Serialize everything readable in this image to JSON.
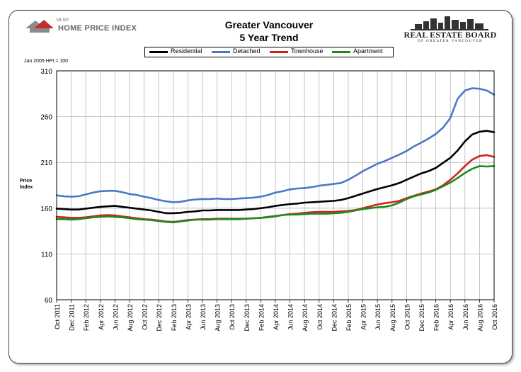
{
  "header": {
    "left_logo_small": "MLS®",
    "left_logo_name": "HOME PRICE INDEX",
    "title_line1": "Greater Vancouver",
    "title_line2": "5 Year Trend",
    "right_logo_name": "REAL ESTATE BOARD",
    "right_logo_sub": "OF GREATER VANCOUVER"
  },
  "note": "Jan 2005 HPI = 100",
  "colors": {
    "residential": "#000000",
    "detached": "#4a78c8",
    "townhouse": "#d42020",
    "apartment": "#1e8a1e",
    "grid": "#b8b8b8"
  },
  "chart_data": {
    "type": "line",
    "title": "Greater Vancouver 5 Year Trend",
    "xlabel": "",
    "ylabel": "Price Index",
    "ylim": [
      60,
      310
    ],
    "yticks": [
      60,
      110,
      160,
      210,
      260,
      310
    ],
    "grid": true,
    "legend": "top",
    "x": [
      "Oct 2011",
      "Nov 2011",
      "Dec 2011",
      "Jan 2012",
      "Feb 2012",
      "Mar 2012",
      "Apr 2012",
      "May 2012",
      "Jun 2012",
      "Jul 2012",
      "Aug 2012",
      "Sep 2012",
      "Oct 2012",
      "Nov 2012",
      "Dec 2012",
      "Jan 2013",
      "Feb 2013",
      "Mar 2013",
      "Apr 2013",
      "May 2013",
      "Jun 2013",
      "Jul 2013",
      "Aug 2013",
      "Sep 2013",
      "Oct 2013",
      "Nov 2013",
      "Dec 2013",
      "Jan 2014",
      "Feb 2014",
      "Mar 2014",
      "Apr 2014",
      "May 2014",
      "Jun 2014",
      "Jul 2014",
      "Aug 2014",
      "Sep 2014",
      "Oct 2014",
      "Nov 2014",
      "Dec 2014",
      "Jan 2015",
      "Feb 2015",
      "Mar 2015",
      "Apr 2015",
      "May 2015",
      "Jun 2015",
      "Jul 2015",
      "Aug 2015",
      "Sep 2015",
      "Oct 2015",
      "Nov 2015",
      "Dec 2015",
      "Jan 2016",
      "Feb 2016",
      "Mar 2016",
      "Apr 2016",
      "May 2016",
      "Jun 2016",
      "Jul 2016",
      "Aug 2016",
      "Sep 2016",
      "Oct 2016"
    ],
    "tick_labels": [
      "Oct 2011",
      "Dec 2011",
      "Feb 2012",
      "Apr 2012",
      "Jun 2012",
      "Aug 2012",
      "Oct 2012",
      "Dec 2012",
      "Feb 2013",
      "Apr 2013",
      "Jun 2013",
      "Aug 2013",
      "Oct 2013",
      "Dec 2013",
      "Feb 2014",
      "Apr 2014",
      "Jun 2014",
      "Aug 2014",
      "Oct 2014",
      "Dec 2014",
      "Feb 2015",
      "Apr 2015",
      "Jun 2015",
      "Aug 2015",
      "Oct 2015",
      "Dec 2015",
      "Feb 2016",
      "Apr 2016",
      "Jun 2016",
      "Aug 2016",
      "Oct 2016"
    ],
    "series": [
      {
        "name": "Residential",
        "color": "#000000",
        "values": [
          159.5,
          159.0,
          158.5,
          158.5,
          159.5,
          160.5,
          161.5,
          162.0,
          162.5,
          161.5,
          160.5,
          159.5,
          158.5,
          157.5,
          156.0,
          154.5,
          154.5,
          155.0,
          156.0,
          156.5,
          157.5,
          157.5,
          158.0,
          158.0,
          158.0,
          158.0,
          158.5,
          159.0,
          160.0,
          161.0,
          162.5,
          163.5,
          164.5,
          165.0,
          166.0,
          166.5,
          167.0,
          167.5,
          168.0,
          169.0,
          171.0,
          173.5,
          176.0,
          178.5,
          181.0,
          183.0,
          185.0,
          187.5,
          191.0,
          194.5,
          198.0,
          200.5,
          204.0,
          209.5,
          215.0,
          223.0,
          233.0,
          240.5,
          243.5,
          244.5,
          243.0
        ]
      },
      {
        "name": "Detached",
        "color": "#4a78c8",
        "values": [
          174.0,
          173.0,
          172.5,
          173.0,
          175.0,
          177.0,
          178.5,
          179.0,
          179.0,
          177.5,
          175.5,
          174.5,
          172.5,
          171.0,
          169.0,
          167.5,
          166.5,
          167.0,
          168.5,
          169.5,
          170.0,
          170.0,
          170.5,
          170.0,
          170.0,
          170.5,
          171.0,
          171.5,
          172.5,
          174.5,
          177.0,
          178.5,
          180.5,
          181.5,
          182.0,
          183.0,
          184.5,
          185.5,
          186.5,
          187.5,
          191.0,
          195.5,
          200.5,
          204.5,
          208.5,
          211.5,
          215.0,
          218.5,
          222.5,
          227.5,
          231.5,
          236.0,
          241.0,
          248.0,
          258.5,
          279.5,
          288.5,
          291.0,
          290.5,
          288.5,
          284.0
        ]
      },
      {
        "name": "Townhouse",
        "color": "#d42020",
        "values": [
          150.5,
          150.0,
          149.5,
          149.5,
          150.0,
          151.0,
          152.0,
          152.5,
          152.0,
          151.0,
          150.0,
          149.0,
          148.0,
          147.5,
          146.5,
          145.5,
          145.0,
          146.0,
          147.0,
          147.5,
          148.0,
          148.0,
          148.5,
          148.5,
          148.5,
          148.5,
          148.5,
          149.0,
          149.5,
          150.0,
          151.0,
          152.5,
          153.5,
          154.0,
          155.0,
          155.5,
          156.0,
          156.0,
          156.0,
          156.5,
          157.0,
          158.0,
          160.0,
          162.0,
          164.0,
          165.5,
          166.5,
          168.0,
          171.0,
          173.5,
          176.0,
          178.0,
          180.5,
          185.0,
          191.0,
          198.0,
          206.0,
          213.0,
          217.0,
          218.0,
          216.0
        ]
      },
      {
        "name": "Apartment",
        "color": "#1e8a1e",
        "values": [
          148.0,
          148.0,
          147.5,
          148.0,
          149.0,
          150.0,
          150.5,
          151.0,
          150.5,
          150.0,
          149.0,
          148.0,
          147.5,
          147.0,
          146.0,
          145.0,
          144.5,
          145.5,
          146.5,
          147.5,
          147.5,
          147.5,
          148.0,
          148.0,
          148.0,
          148.0,
          148.5,
          149.0,
          149.5,
          150.5,
          151.5,
          152.5,
          153.0,
          153.0,
          153.5,
          154.0,
          154.0,
          154.0,
          154.5,
          155.0,
          156.0,
          157.5,
          159.0,
          160.0,
          161.0,
          161.5,
          163.0,
          166.0,
          170.0,
          173.0,
          175.0,
          177.0,
          180.0,
          184.0,
          188.0,
          193.0,
          198.5,
          203.0,
          206.0,
          205.5,
          206.0
        ]
      }
    ]
  }
}
